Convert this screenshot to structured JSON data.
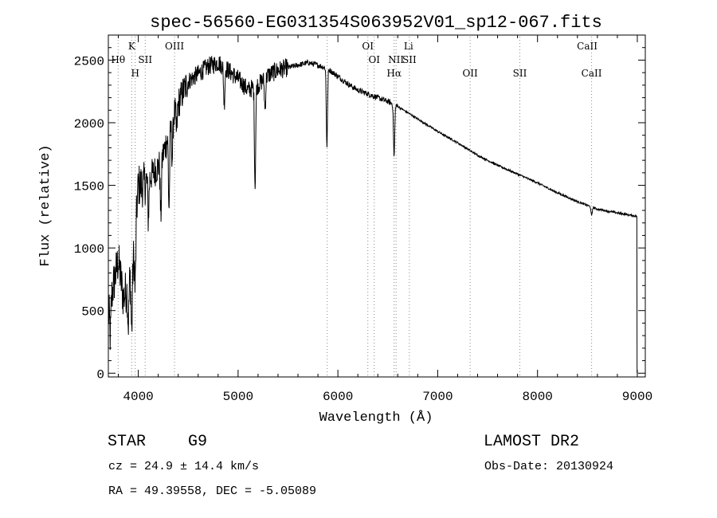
{
  "chart_data": {
    "type": "line",
    "title": "spec-56560-EG031354S063952V01_sp12-067.fits",
    "xlabel": "Wavelength (Å)",
    "ylabel": "Flux (relative)",
    "xlim": [
      3700,
      9080
    ],
    "ylim": [
      -30,
      2700
    ],
    "x_ticks": [
      4000,
      5000,
      6000,
      7000,
      8000,
      9000
    ],
    "y_ticks": [
      0,
      500,
      1000,
      1500,
      2000,
      2500
    ],
    "x_tick_labels": [
      "4000",
      "5000",
      "6000",
      "7000",
      "8000",
      "9000"
    ],
    "y_tick_labels": [
      "0",
      "500",
      "1000",
      "1500",
      "2000",
      "2500"
    ],
    "grid": false,
    "line_color": "#000000",
    "line_markers": [
      {
        "label": "Hθ",
        "wavelength": 3798,
        "row": 2
      },
      {
        "label": "K",
        "wavelength": 3934,
        "row": 1
      },
      {
        "label": "H",
        "wavelength": 3969,
        "row": 3
      },
      {
        "label": "SII",
        "wavelength": 4069,
        "row": 2
      },
      {
        "label": "OIII",
        "wavelength": 4363,
        "row": 1
      },
      {
        "label": "OI",
        "wavelength": 6300,
        "row": 1
      },
      {
        "label": "OI",
        "wavelength": 6364,
        "row": 2
      },
      {
        "label": "Hα",
        "wavelength": 6563,
        "row": 3
      },
      {
        "label": "NII",
        "wavelength": 6583,
        "row": 2
      },
      {
        "label": "Li",
        "wavelength": 6708,
        "row": 1
      },
      {
        "label": "SII",
        "wavelength": 6716,
        "row": 2
      },
      {
        "label": "OII",
        "wavelength": 7325,
        "row": 3
      },
      {
        "label": "SII",
        "wavelength": 7823,
        "row": 3
      },
      {
        "label": "CaII",
        "wavelength": 8498,
        "row": 1
      },
      {
        "label": "CaII",
        "wavelength": 8542,
        "row": 3
      }
    ],
    "marker_lines": [
      3798,
      3934,
      3969,
      4069,
      4363,
      5893,
      6300,
      6364,
      6563,
      6583,
      6716,
      7325,
      7823,
      8542
    ],
    "continuum": [
      [
        3700,
        450
      ],
      [
        3750,
        700
      ],
      [
        3800,
        900
      ],
      [
        3850,
        600
      ],
      [
        3900,
        700
      ],
      [
        3950,
        900
      ],
      [
        4000,
        1500
      ],
      [
        4050,
        1500
      ],
      [
        4100,
        1550
      ],
      [
        4150,
        1600
      ],
      [
        4200,
        1650
      ],
      [
        4250,
        1750
      ],
      [
        4300,
        1900
      ],
      [
        4350,
        2050
      ],
      [
        4400,
        2150
      ],
      [
        4450,
        2250
      ],
      [
        4500,
        2330
      ],
      [
        4600,
        2390
      ],
      [
        4700,
        2450
      ],
      [
        4800,
        2480
      ],
      [
        4900,
        2420
      ],
      [
        5000,
        2350
      ],
      [
        5100,
        2260
      ],
      [
        5200,
        2300
      ],
      [
        5300,
        2380
      ],
      [
        5400,
        2420
      ],
      [
        5500,
        2440
      ],
      [
        5600,
        2460
      ],
      [
        5700,
        2480
      ],
      [
        5800,
        2460
      ],
      [
        5900,
        2430
      ],
      [
        6000,
        2370
      ],
      [
        6100,
        2310
      ],
      [
        6200,
        2260
      ],
      [
        6300,
        2230
      ],
      [
        6400,
        2200
      ],
      [
        6500,
        2170
      ],
      [
        6600,
        2130
      ],
      [
        6700,
        2080
      ],
      [
        6800,
        2030
      ],
      [
        6900,
        1980
      ],
      [
        7000,
        1930
      ],
      [
        7200,
        1840
      ],
      [
        7400,
        1740
      ],
      [
        7600,
        1660
      ],
      [
        7800,
        1590
      ],
      [
        8000,
        1520
      ],
      [
        8200,
        1440
      ],
      [
        8400,
        1370
      ],
      [
        8600,
        1310
      ],
      [
        8800,
        1280
      ],
      [
        8980,
        1255
      ]
    ],
    "absorption_features": [
      {
        "wavelength": 3720,
        "depth": 250
      },
      {
        "wavelength": 3900,
        "depth": 300
      },
      {
        "wavelength": 3934,
        "depth": 500
      },
      {
        "wavelength": 3969,
        "depth": 450
      },
      {
        "wavelength": 4101,
        "depth": 300
      },
      {
        "wavelength": 4226,
        "depth": 450
      },
      {
        "wavelength": 4308,
        "depth": 600
      },
      {
        "wavelength": 4340,
        "depth": 300
      },
      {
        "wavelength": 4384,
        "depth": 200
      },
      {
        "wavelength": 4861,
        "depth": 300
      },
      {
        "wavelength": 5170,
        "depth": 800
      },
      {
        "wavelength": 5270,
        "depth": 250
      },
      {
        "wavelength": 5890,
        "depth": 620
      },
      {
        "wavelength": 6563,
        "depth": 420
      },
      {
        "wavelength": 8542,
        "depth": 70
      }
    ]
  },
  "info": {
    "object_type": "STAR",
    "subclass": "G9",
    "survey": "LAMOST DR2",
    "cz_line": "cz = 24.9 ± 14.4 km/s",
    "obs_date": "Obs-Date: 20130924",
    "coords": "RA =  49.39558, DEC =  -5.05089"
  }
}
